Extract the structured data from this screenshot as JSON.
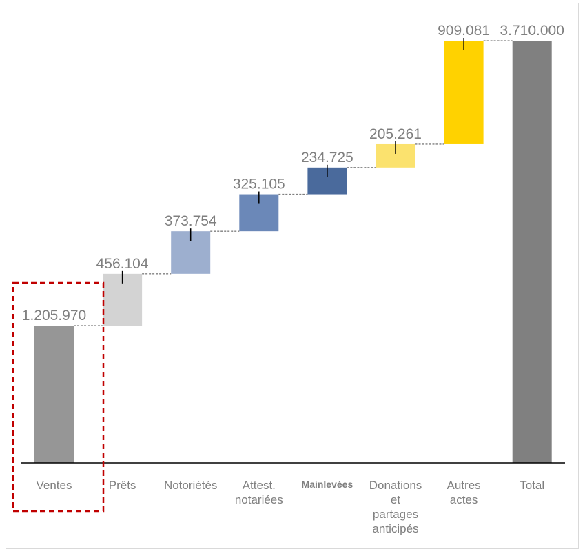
{
  "chart_data": {
    "type": "bar",
    "subtype": "waterfall",
    "categories": [
      "Ventes",
      "Prêts",
      "Notoriétés",
      "Attest. notariées",
      "Mainlevées",
      "Donations et partages anticipés",
      "Autres actes",
      "Total"
    ],
    "values": [
      1205970,
      456104,
      373754,
      325105,
      234725,
      205261,
      909081,
      3710000
    ],
    "value_labels": [
      "1.205.970",
      "456.104",
      "373.754",
      "325.105",
      "234.725",
      "205.261",
      "909.081",
      "3.710.000"
    ],
    "total_index": 7,
    "bold_category_index": 4,
    "highlight_category_index": 0,
    "colors": [
      "#969696",
      "#d3d3d3",
      "#9dafcf",
      "#6b88b8",
      "#4a6a9c",
      "#fbe26e",
      "#ffd200",
      "#808080"
    ],
    "connector_color": "#7f7f7f",
    "highlight_color": "#c00000",
    "grid": false,
    "legend": "none"
  }
}
